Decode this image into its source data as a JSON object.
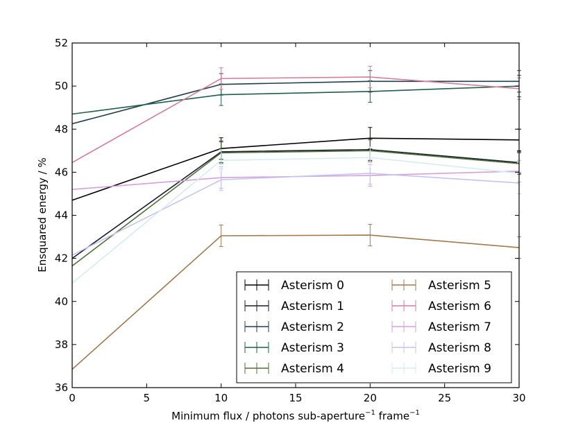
{
  "chart_data": {
    "type": "line",
    "title": "",
    "xlabel": "Minimum flux / photons sub-aperture",
    "xlabel_sup1": "−1",
    "xlabel_mid": " frame",
    "xlabel_sup2": "−1",
    "ylabel": "Ensquared energy / %",
    "xlim": [
      0,
      30
    ],
    "ylim": [
      36,
      52
    ],
    "xticks": [
      0,
      5,
      10,
      15,
      20,
      25,
      30
    ],
    "yticks": [
      36,
      38,
      40,
      42,
      44,
      46,
      48,
      50,
      52
    ],
    "x": [
      0,
      10,
      20,
      30
    ],
    "legend_location": "lower right",
    "series": [
      {
        "name": "Asterism 0",
        "color": "#000000",
        "values": [
          44.7,
          47.1,
          47.58,
          47.5
        ],
        "errors": [
          0,
          0.5,
          0.5,
          0.5
        ]
      },
      {
        "name": "Asterism 1",
        "color": "#1c1a2e",
        "values": [
          42.0,
          46.95,
          47.05,
          46.45
        ],
        "errors": [
          0,
          0.5,
          0.5,
          0.5
        ]
      },
      {
        "name": "Asterism 2",
        "color": "#1f3d4f",
        "values": [
          48.25,
          50.08,
          50.22,
          50.22
        ],
        "errors": [
          0,
          0.5,
          0.5,
          0.5
        ]
      },
      {
        "name": "Asterism 3",
        "color": "#1f5e49",
        "values": [
          48.7,
          49.6,
          49.75,
          50.0
        ],
        "errors": [
          0,
          0.5,
          0.5,
          0.5
        ]
      },
      {
        "name": "Asterism 4",
        "color": "#4b7337",
        "values": [
          41.65,
          46.9,
          47.0,
          46.4
        ],
        "errors": [
          0,
          0.5,
          0.5,
          0.5
        ]
      },
      {
        "name": "Asterism 5",
        "color": "#a07a4f",
        "values": [
          36.85,
          43.05,
          43.08,
          42.5
        ],
        "errors": [
          0,
          0.5,
          0.5,
          0.5
        ]
      },
      {
        "name": "Asterism 6",
        "color": "#d47e98",
        "values": [
          46.45,
          50.35,
          50.42,
          49.88
        ],
        "errors": [
          0,
          0.5,
          0.5,
          0.5
        ]
      },
      {
        "name": "Asterism 7",
        "color": "#d5a0db",
        "values": [
          45.2,
          45.75,
          45.85,
          46.05
        ],
        "errors": [
          0,
          0.5,
          0.5,
          0.5
        ]
      },
      {
        "name": "Asterism 8",
        "color": "#c3c4f1",
        "values": [
          42.15,
          45.65,
          45.95,
          45.5
        ],
        "errors": [
          0,
          0.5,
          0.5,
          0.5
        ]
      },
      {
        "name": "Asterism 9",
        "color": "#d3eeed",
        "values": [
          40.85,
          46.55,
          46.68,
          45.95
        ],
        "errors": [
          0,
          0.5,
          0.5,
          0.5
        ]
      }
    ]
  }
}
